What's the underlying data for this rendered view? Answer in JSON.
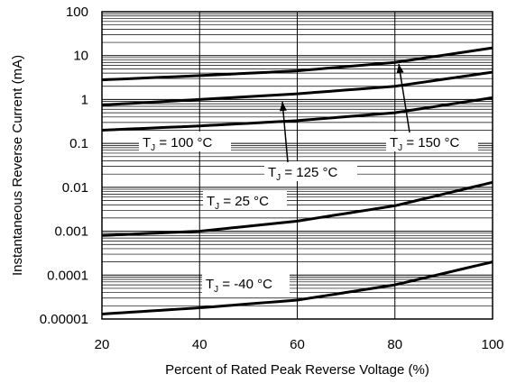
{
  "chart_data": {
    "type": "line",
    "title": "",
    "xlabel": "Percent of Rated Peak Reverse Voltage (%)",
    "ylabel": "Instantaneous Reverse Current (mA)",
    "xlim": [
      20,
      100
    ],
    "ylim": [
      1e-05,
      100
    ],
    "yscale": "log",
    "grid": true,
    "x_ticks": [
      "20",
      "40",
      "60",
      "80",
      "100"
    ],
    "y_ticks": [
      "0.00001",
      "0.0001",
      "0.001",
      "0.01",
      "0.1",
      "1",
      "10",
      "100"
    ],
    "series": [
      {
        "name": "150 °C",
        "x": [
          20,
          40,
          60,
          80,
          100
        ],
        "y": [
          2.8,
          3.5,
          4.5,
          7,
          15
        ]
      },
      {
        "name": "125 °C",
        "x": [
          20,
          40,
          60,
          80,
          100
        ],
        "y": [
          0.75,
          1.0,
          1.35,
          2.0,
          4.2
        ]
      },
      {
        "name": "100 °C",
        "x": [
          20,
          40,
          60,
          80,
          100
        ],
        "y": [
          0.2,
          0.25,
          0.33,
          0.5,
          1.1
        ]
      },
      {
        "name": "25 °C",
        "x": [
          20,
          40,
          60,
          80,
          100
        ],
        "y": [
          0.0008,
          0.001,
          0.0017,
          0.0038,
          0.013
        ]
      },
      {
        "name": "-40 °C",
        "x": [
          20,
          40,
          60,
          80,
          100
        ],
        "y": [
          1.3e-05,
          1.8e-05,
          2.7e-05,
          6e-05,
          0.0002
        ]
      }
    ],
    "annotations": [
      {
        "main": "T",
        "sub": "J",
        "text": " = 150 °C",
        "series": "150 °C"
      },
      {
        "main": "T",
        "sub": "J",
        "text": " = 125 °C",
        "series": "125 °C"
      },
      {
        "main": "T",
        "sub": "J",
        "text": " = 100 °C",
        "series": "100 °C"
      },
      {
        "main": "T",
        "sub": "J",
        "text": " = 25 °C",
        "series": "25 °C"
      },
      {
        "main": "T",
        "sub": "J",
        "text": " = -40 °C",
        "series": "-40 °C"
      }
    ]
  }
}
